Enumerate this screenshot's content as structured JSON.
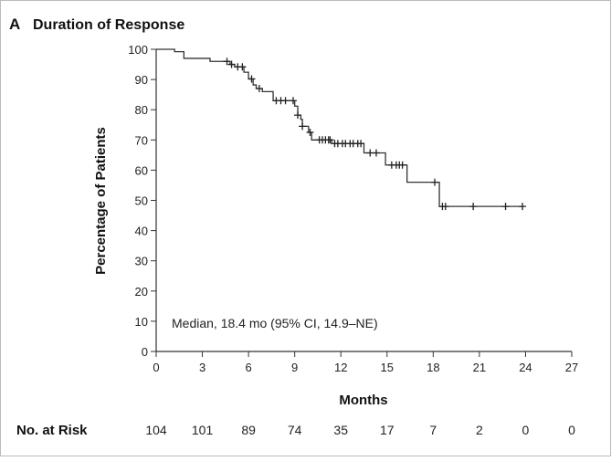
{
  "chart_data": {
    "type": "line",
    "panel_label": "A",
    "title": "Duration of Response",
    "xlabel": "Months",
    "ylabel": "Percentage of Patients",
    "xlim": [
      0,
      27
    ],
    "ylim": [
      0,
      100
    ],
    "xticks": [
      0,
      3,
      6,
      9,
      12,
      15,
      18,
      21,
      24,
      27
    ],
    "yticks": [
      0,
      10,
      20,
      30,
      40,
      50,
      60,
      70,
      80,
      90,
      100
    ],
    "grid": false,
    "annotation": "Median, 18.4 mo (95% CI, 14.9–NE)",
    "series": [
      {
        "steps": [
          [
            0,
            100
          ],
          [
            1.2,
            99.2
          ],
          [
            1.8,
            97.0
          ],
          [
            3.5,
            96.0
          ],
          [
            4.8,
            95.0
          ],
          [
            5.1,
            94.2
          ],
          [
            5.7,
            92.4
          ],
          [
            6.0,
            90.2
          ],
          [
            6.3,
            88.2
          ],
          [
            6.5,
            87.0
          ],
          [
            6.9,
            86.0
          ],
          [
            7.6,
            83.0
          ],
          [
            9.0,
            81.2
          ],
          [
            9.2,
            78.2
          ],
          [
            9.4,
            76.8
          ],
          [
            9.5,
            74.5
          ],
          [
            9.9,
            72.5
          ],
          [
            10.1,
            70.0
          ],
          [
            11.4,
            68.8
          ],
          [
            13.5,
            65.7
          ],
          [
            14.9,
            61.7
          ],
          [
            16.3,
            56.0
          ],
          [
            18.4,
            48.0
          ],
          [
            23.8,
            48.0
          ]
        ],
        "censored": [
          4.6,
          4.9,
          5.3,
          5.6,
          6.2,
          6.7,
          7.8,
          8.1,
          8.4,
          8.9,
          9.2,
          9.5,
          10.0,
          10.6,
          10.8,
          11.0,
          11.2,
          11.3,
          11.6,
          11.8,
          12.1,
          12.3,
          12.6,
          12.8,
          13.1,
          13.3,
          13.9,
          14.3,
          15.3,
          15.6,
          15.8,
          16.0,
          18.1,
          18.6,
          18.8,
          20.6,
          22.7,
          23.8
        ]
      }
    ],
    "risk_table": {
      "label": "No. at Risk",
      "values": [
        "104",
        "101",
        "89",
        "74",
        "35",
        "17",
        "7",
        "2",
        "0",
        "0"
      ]
    }
  }
}
